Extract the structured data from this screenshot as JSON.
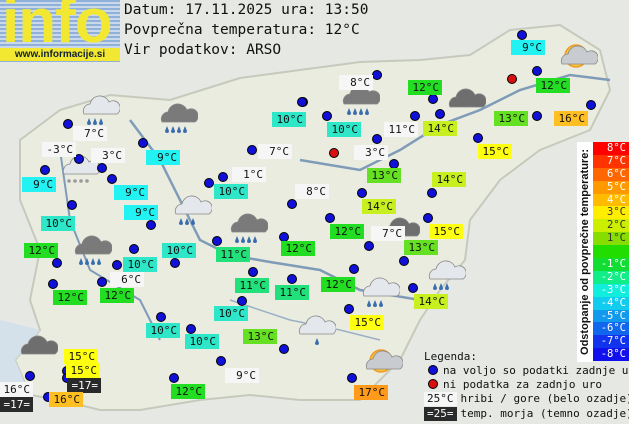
{
  "header": {
    "logo_word": "info",
    "logo_url": "www.informacije.si",
    "date_line": "Datum: 17.11.2025 ura: 13:50",
    "avg_line": "Povprečna temperatura: 12°C",
    "source_line": "Vir podatkov: ARSO"
  },
  "map": {
    "stations": [
      {
        "text": "9°C",
        "bg": "#22f2f2"
      },
      {
        "text": "12°C",
        "bg": "#22dd22"
      },
      {
        "text": "12°C",
        "bg": "#22dd22"
      },
      {
        "text": "8°C",
        "bg": "#f6f6f6"
      },
      {
        "text": "10°C",
        "bg": "#2ee6c8"
      },
      {
        "text": "10°C",
        "bg": "#2ee6c8"
      },
      {
        "text": "11°C",
        "bg": "#f6f6f6"
      },
      {
        "text": "14°C",
        "bg": "#c8f020"
      },
      {
        "text": "13°C",
        "bg": "#66e022"
      },
      {
        "text": "16°C",
        "bg": "#ffbf22"
      },
      {
        "text": "7°C",
        "bg": "#f6f6f6"
      },
      {
        "text": "-3°C",
        "bg": "#f6f6f6"
      },
      {
        "text": "3°C",
        "bg": "#f6f6f6"
      },
      {
        "text": "9°C",
        "bg": "#22f2f2"
      },
      {
        "text": "7°C",
        "bg": "#f6f6f6"
      },
      {
        "text": "3°C",
        "bg": "#f6f6f6"
      },
      {
        "text": "15°C",
        "bg": "#ffff10"
      },
      {
        "text": "9°C",
        "bg": "#22f2f2"
      },
      {
        "text": "1°C",
        "bg": "#f6f6f6"
      },
      {
        "text": "13°C",
        "bg": "#66e022"
      },
      {
        "text": "14°C",
        "bg": "#c8f020"
      },
      {
        "text": "10°C",
        "bg": "#2ee6c8"
      },
      {
        "text": "9°C",
        "bg": "#22f2f2"
      },
      {
        "text": "8°C",
        "bg": "#f6f6f6"
      },
      {
        "text": "14°C",
        "bg": "#c8f020"
      },
      {
        "text": "9°C",
        "bg": "#22f2f2"
      },
      {
        "text": "10°C",
        "bg": "#2ee6c8"
      },
      {
        "text": "15°C",
        "bg": "#ffff10"
      },
      {
        "text": "12°C",
        "bg": "#22dd22"
      },
      {
        "text": "7°C",
        "bg": "#f6f6f6"
      },
      {
        "text": "10°C",
        "bg": "#2ee6c8"
      },
      {
        "text": "11°C",
        "bg": "#22e07a"
      },
      {
        "text": "12°C",
        "bg": "#22dd22"
      },
      {
        "text": "13°C",
        "bg": "#66e022"
      },
      {
        "text": "12°C",
        "bg": "#22dd22"
      },
      {
        "text": "10°C",
        "bg": "#2ee6c8"
      },
      {
        "text": "6°C",
        "bg": "#f6f6f6"
      },
      {
        "text": "11°C",
        "bg": "#22e07a"
      },
      {
        "text": "11°C",
        "bg": "#22e07a"
      },
      {
        "text": "12°C",
        "bg": "#22dd22"
      },
      {
        "text": "14°C",
        "bg": "#c8f020"
      },
      {
        "text": "12°C",
        "bg": "#22dd22"
      },
      {
        "text": "12°C",
        "bg": "#22dd22"
      },
      {
        "text": "15°C",
        "bg": "#ffff10"
      },
      {
        "text": "10°C",
        "bg": "#2ee6c8"
      },
      {
        "text": "10°C",
        "bg": "#2ee6c8"
      },
      {
        "text": "10°C",
        "bg": "#2ee6c8"
      },
      {
        "text": "13°C",
        "bg": "#66e022"
      },
      {
        "text": "15°C",
        "bg": "#ffff10"
      },
      {
        "text": "15°C",
        "bg": "#ffff10"
      },
      {
        "text": "=17=",
        "bg": "#2a2a2a",
        "fg": "#ffffff"
      },
      {
        "text": "16°C",
        "bg": "#f6f6f6"
      },
      {
        "text": "=17=",
        "bg": "#2a2a2a",
        "fg": "#ffffff"
      },
      {
        "text": "16°C",
        "bg": "#ffbf22"
      },
      {
        "text": "12°C",
        "bg": "#22dd22"
      },
      {
        "text": "9°C",
        "bg": "#f6f6f6"
      },
      {
        "text": "17°C",
        "bg": "#ff9a1a"
      }
    ]
  },
  "scale": {
    "title": "Odstopanje od povprečne temperature:",
    "steps": [
      {
        "text": "8°C",
        "bg": "#ff0000"
      },
      {
        "text": "7°C",
        "bg": "#ff3300"
      },
      {
        "text": "6°C",
        "bg": "#ff6600"
      },
      {
        "text": "5°C",
        "bg": "#ff9900"
      },
      {
        "text": "4°C",
        "bg": "#ffbb00"
      },
      {
        "text": "3°C",
        "bg": "#ffee00"
      },
      {
        "text": "2°C",
        "bg": "#ccee00"
      },
      {
        "text": "1°C",
        "bg": "#88dd00"
      },
      {
        "text": "",
        "bg": "#22dd00"
      },
      {
        "text": "-1°C",
        "bg": "#11dd33"
      },
      {
        "text": "-2°C",
        "bg": "#11ee88"
      },
      {
        "text": "-3°C",
        "bg": "#11eedd"
      },
      {
        "text": "-4°C",
        "bg": "#11ccee"
      },
      {
        "text": "-5°C",
        "bg": "#1199ee"
      },
      {
        "text": "-6°C",
        "bg": "#1166ee"
      },
      {
        "text": "-7°C",
        "bg": "#1133ee"
      },
      {
        "text": "-8°C",
        "bg": "#1111ee"
      }
    ]
  },
  "legend": {
    "title": "Legenda:",
    "blue_dot": "na voljo so podatki zadnje ure",
    "red_dot": "ni podatka za zadnjo uro",
    "mountain_sample": "25°C",
    "mountain_text": "hribi / gore (belo ozadje)",
    "sea_sample": "=25=",
    "sea_text": "temp. morja (temno ozadje)"
  }
}
